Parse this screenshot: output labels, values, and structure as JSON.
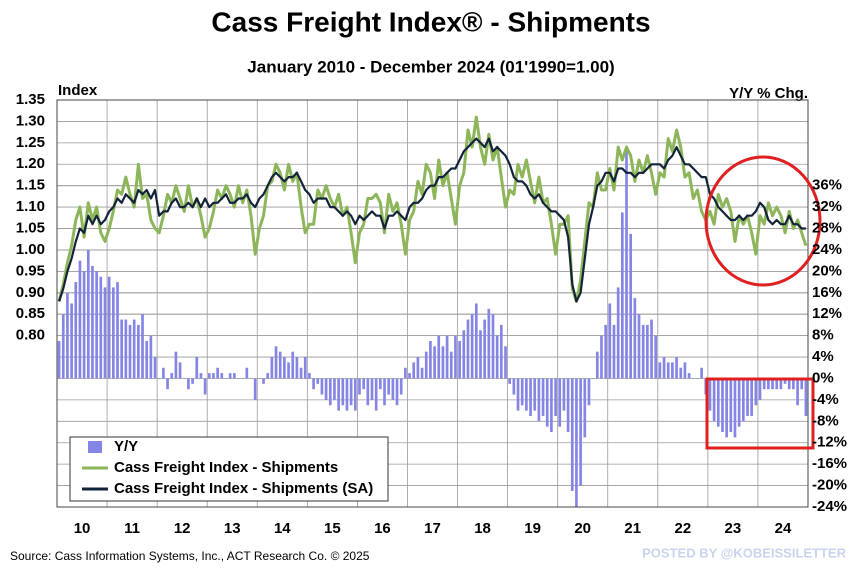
{
  "chart_data": {
    "type": "bar-line-dual-axis",
    "title": "Cass Freight Index® - Shipments",
    "subtitle": "January 2010 - December 2024 (01'1990=1.00)",
    "y_axis_label": "Index",
    "y2_axis_label": "Y/Y % Chg.",
    "source": "Source: Cass Information Systems, Inc., ACT Research Co. © 2025",
    "watermark": "POSTED BY @KOBEISSILETTER",
    "categories": [
      "10",
      "11",
      "12",
      "13",
      "14",
      "15",
      "16",
      "17",
      "18",
      "19",
      "20",
      "21",
      "22",
      "23",
      "24"
    ],
    "ylim": [
      0.4,
      1.35
    ],
    "yticks": [
      {
        "value": 0.8,
        "label": "0.80"
      },
      {
        "value": 0.85,
        "label": "0.85"
      },
      {
        "value": 0.9,
        "label": "0.90"
      },
      {
        "value": 0.95,
        "label": "0.95"
      },
      {
        "value": 1.0,
        "label": "1.00"
      },
      {
        "value": 1.05,
        "label": "1.05"
      },
      {
        "value": 1.1,
        "label": "1.10"
      },
      {
        "value": 1.15,
        "label": "1.15"
      },
      {
        "value": 1.2,
        "label": "1.20"
      },
      {
        "value": 1.25,
        "label": "1.25"
      },
      {
        "value": 1.3,
        "label": "1.30"
      },
      {
        "value": 1.35,
        "label": "1.35"
      }
    ],
    "y2lim": [
      -24,
      52
    ],
    "y2ticks": [
      {
        "value": -24,
        "label": "-24%"
      },
      {
        "value": -20,
        "label": "-20%"
      },
      {
        "value": -16,
        "label": "-16%"
      },
      {
        "value": -12,
        "label": "-12%"
      },
      {
        "value": -8,
        "label": "-8%"
      },
      {
        "value": -4,
        "label": "-4%"
      },
      {
        "value": 0,
        "label": "0%"
      },
      {
        "value": 4,
        "label": "4%"
      },
      {
        "value": 8,
        "label": "8%"
      },
      {
        "value": 12,
        "label": "12%"
      },
      {
        "value": 16,
        "label": "16%"
      },
      {
        "value": 20,
        "label": "20%"
      },
      {
        "value": 24,
        "label": "24%"
      },
      {
        "value": 28,
        "label": "28%"
      },
      {
        "value": 32,
        "label": "32%"
      },
      {
        "value": 36,
        "label": "36%"
      }
    ],
    "grid": true,
    "legend": "lower left",
    "series": [
      {
        "name": "Y/Y",
        "kind": "bar",
        "axis": "y2",
        "color": "#8585e6",
        "values": [
          [
            7,
            12,
            16,
            14,
            18,
            22,
            20,
            24,
            21,
            20,
            19,
            17
          ],
          [
            19,
            17,
            18,
            11,
            11,
            10,
            11,
            10,
            12,
            7,
            8,
            4
          ],
          [
            0,
            2,
            -2,
            1,
            5,
            3,
            0,
            -2,
            -1,
            4,
            1,
            -3
          ],
          [
            1,
            1,
            2,
            1,
            0,
            1,
            1,
            0,
            0,
            2,
            0,
            -4
          ],
          [
            0,
            -1,
            1,
            4,
            6,
            5,
            4,
            3,
            5,
            4,
            2,
            4
          ],
          [
            1,
            -2,
            -1,
            -3,
            -4,
            -5,
            -4,
            -6,
            -5,
            -6,
            -5,
            -6
          ],
          [
            -3,
            -2,
            -5,
            -4,
            -6,
            -2,
            -5,
            -3,
            -4,
            -5,
            -3,
            2
          ],
          [
            1,
            3,
            4,
            2,
            5,
            7,
            6,
            8,
            6,
            8,
            5,
            8
          ],
          [
            7,
            9,
            11,
            12,
            14,
            9,
            11,
            13,
            12,
            8,
            10,
            6
          ],
          [
            -1,
            -3,
            -6,
            -5,
            -6,
            -7,
            -6,
            -8,
            -7,
            -9,
            -10,
            -7
          ],
          [
            -9,
            -6,
            -10,
            -21,
            -24,
            -20,
            -11,
            -5,
            0,
            5,
            8,
            10
          ],
          [
            14,
            10,
            17,
            31,
            43,
            27,
            15,
            12,
            10,
            10,
            11,
            8
          ],
          [
            3,
            4,
            3,
            3,
            4,
            2,
            3,
            1,
            0,
            0,
            2,
            -3
          ],
          [
            -6,
            -8,
            -9,
            -10,
            -11,
            -10,
            -11,
            -9,
            -8,
            -7,
            -7,
            -5
          ],
          [
            -4,
            -2,
            -2,
            -2,
            -2,
            -2,
            -1,
            -2,
            -2,
            -5,
            -2,
            -7
          ]
        ]
      },
      {
        "name": "Cass Freight Index - Shipments",
        "kind": "line",
        "color": "#8db65a",
        "values": [
          [
            0.88,
            0.92,
            0.97,
            1.01,
            1.07,
            1.1,
            1.03,
            1.11,
            1.07,
            1.1,
            1.04,
            1.02
          ],
          [
            1.05,
            1.09,
            1.14,
            1.13,
            1.17,
            1.13,
            1.1,
            1.2,
            1.12,
            1.13,
            1.07,
            1.05
          ],
          [
            1.04,
            1.08,
            1.13,
            1.11,
            1.15,
            1.12,
            1.09,
            1.15,
            1.1,
            1.12,
            1.08,
            1.03
          ],
          [
            1.05,
            1.09,
            1.14,
            1.12,
            1.15,
            1.13,
            1.1,
            1.15,
            1.11,
            1.14,
            1.08,
            0.99
          ],
          [
            1.05,
            1.08,
            1.15,
            1.16,
            1.2,
            1.18,
            1.14,
            1.2,
            1.16,
            1.18,
            1.1,
            1.04
          ],
          [
            1.06,
            1.06,
            1.14,
            1.12,
            1.15,
            1.12,
            1.1,
            1.13,
            1.08,
            1.1,
            1.04,
            0.97
          ],
          [
            1.04,
            1.06,
            1.12,
            1.12,
            1.13,
            1.11,
            1.04,
            1.13,
            1.09,
            1.11,
            1.06,
            0.99
          ],
          [
            1.07,
            1.09,
            1.16,
            1.13,
            1.2,
            1.18,
            1.12,
            1.21,
            1.15,
            1.18,
            1.12,
            1.06
          ],
          [
            1.15,
            1.18,
            1.28,
            1.24,
            1.31,
            1.24,
            1.2,
            1.27,
            1.21,
            1.24,
            1.17,
            1.1
          ],
          [
            1.14,
            1.13,
            1.2,
            1.17,
            1.21,
            1.16,
            1.11,
            1.17,
            1.11,
            1.12,
            1.06,
            0.99
          ],
          [
            1.06,
            1.06,
            1.08,
            0.91,
            0.88,
            0.93,
            1.02,
            1.11,
            1.1,
            1.18,
            1.14,
            1.14
          ],
          [
            1.19,
            1.14,
            1.24,
            1.21,
            1.24,
            1.22,
            1.16,
            1.21,
            1.18,
            1.22,
            1.18,
            1.13
          ],
          [
            1.18,
            1.17,
            1.26,
            1.23,
            1.28,
            1.24,
            1.17,
            1.18,
            1.12,
            1.14,
            1.09,
            1.07
          ],
          [
            1.09,
            1.06,
            1.13,
            1.1,
            1.12,
            1.09,
            1.02,
            1.08,
            1.06,
            1.08,
            1.04,
            0.99
          ],
          [
            1.08,
            1.06,
            1.11,
            1.08,
            1.1,
            1.08,
            1.04,
            1.09,
            1.05,
            1.07,
            1.04,
            1.01
          ]
        ]
      },
      {
        "name": "Cass Freight Index - Shipments (SA)",
        "kind": "line",
        "color": "#13233a",
        "values": [
          [
            0.88,
            0.91,
            0.95,
            0.98,
            1.02,
            1.05,
            1.04,
            1.08,
            1.06,
            1.08,
            1.06,
            1.07
          ],
          [
            1.09,
            1.1,
            1.12,
            1.11,
            1.13,
            1.12,
            1.11,
            1.14,
            1.13,
            1.14,
            1.12,
            1.14
          ],
          [
            1.08,
            1.09,
            1.09,
            1.11,
            1.12,
            1.1,
            1.1,
            1.11,
            1.1,
            1.12,
            1.1,
            1.12
          ],
          [
            1.1,
            1.11,
            1.11,
            1.12,
            1.13,
            1.11,
            1.11,
            1.12,
            1.12,
            1.13,
            1.11,
            1.1
          ],
          [
            1.12,
            1.13,
            1.15,
            1.17,
            1.18,
            1.17,
            1.16,
            1.17,
            1.17,
            1.18,
            1.16,
            1.14
          ],
          [
            1.13,
            1.11,
            1.12,
            1.12,
            1.12,
            1.1,
            1.1,
            1.09,
            1.08,
            1.09,
            1.08,
            1.06
          ],
          [
            1.08,
            1.07,
            1.08,
            1.09,
            1.08,
            1.08,
            1.05,
            1.08,
            1.08,
            1.09,
            1.08,
            1.07
          ],
          [
            1.1,
            1.11,
            1.11,
            1.12,
            1.14,
            1.15,
            1.15,
            1.17,
            1.17,
            1.18,
            1.19,
            1.19
          ],
          [
            1.21,
            1.23,
            1.24,
            1.25,
            1.26,
            1.25,
            1.24,
            1.26,
            1.23,
            1.24,
            1.23,
            1.22
          ],
          [
            1.2,
            1.17,
            1.16,
            1.16,
            1.15,
            1.13,
            1.12,
            1.13,
            1.11,
            1.1,
            1.09,
            1.09
          ],
          [
            1.08,
            1.07,
            1.03,
            0.92,
            0.88,
            0.9,
            0.98,
            1.06,
            1.1,
            1.15,
            1.16,
            1.18
          ],
          [
            1.18,
            1.16,
            1.19,
            1.19,
            1.18,
            1.18,
            1.17,
            1.18,
            1.18,
            1.19,
            1.2,
            1.2
          ],
          [
            1.2,
            1.19,
            1.21,
            1.22,
            1.24,
            1.22,
            1.2,
            1.2,
            1.19,
            1.18,
            1.17,
            1.17
          ],
          [
            1.13,
            1.12,
            1.1,
            1.09,
            1.08,
            1.07,
            1.07,
            1.08,
            1.07,
            1.08,
            1.08,
            1.09
          ],
          [
            1.11,
            1.1,
            1.07,
            1.06,
            1.07,
            1.06,
            1.06,
            1.08,
            1.06,
            1.06,
            1.05,
            1.05
          ]
        ]
      }
    ]
  }
}
